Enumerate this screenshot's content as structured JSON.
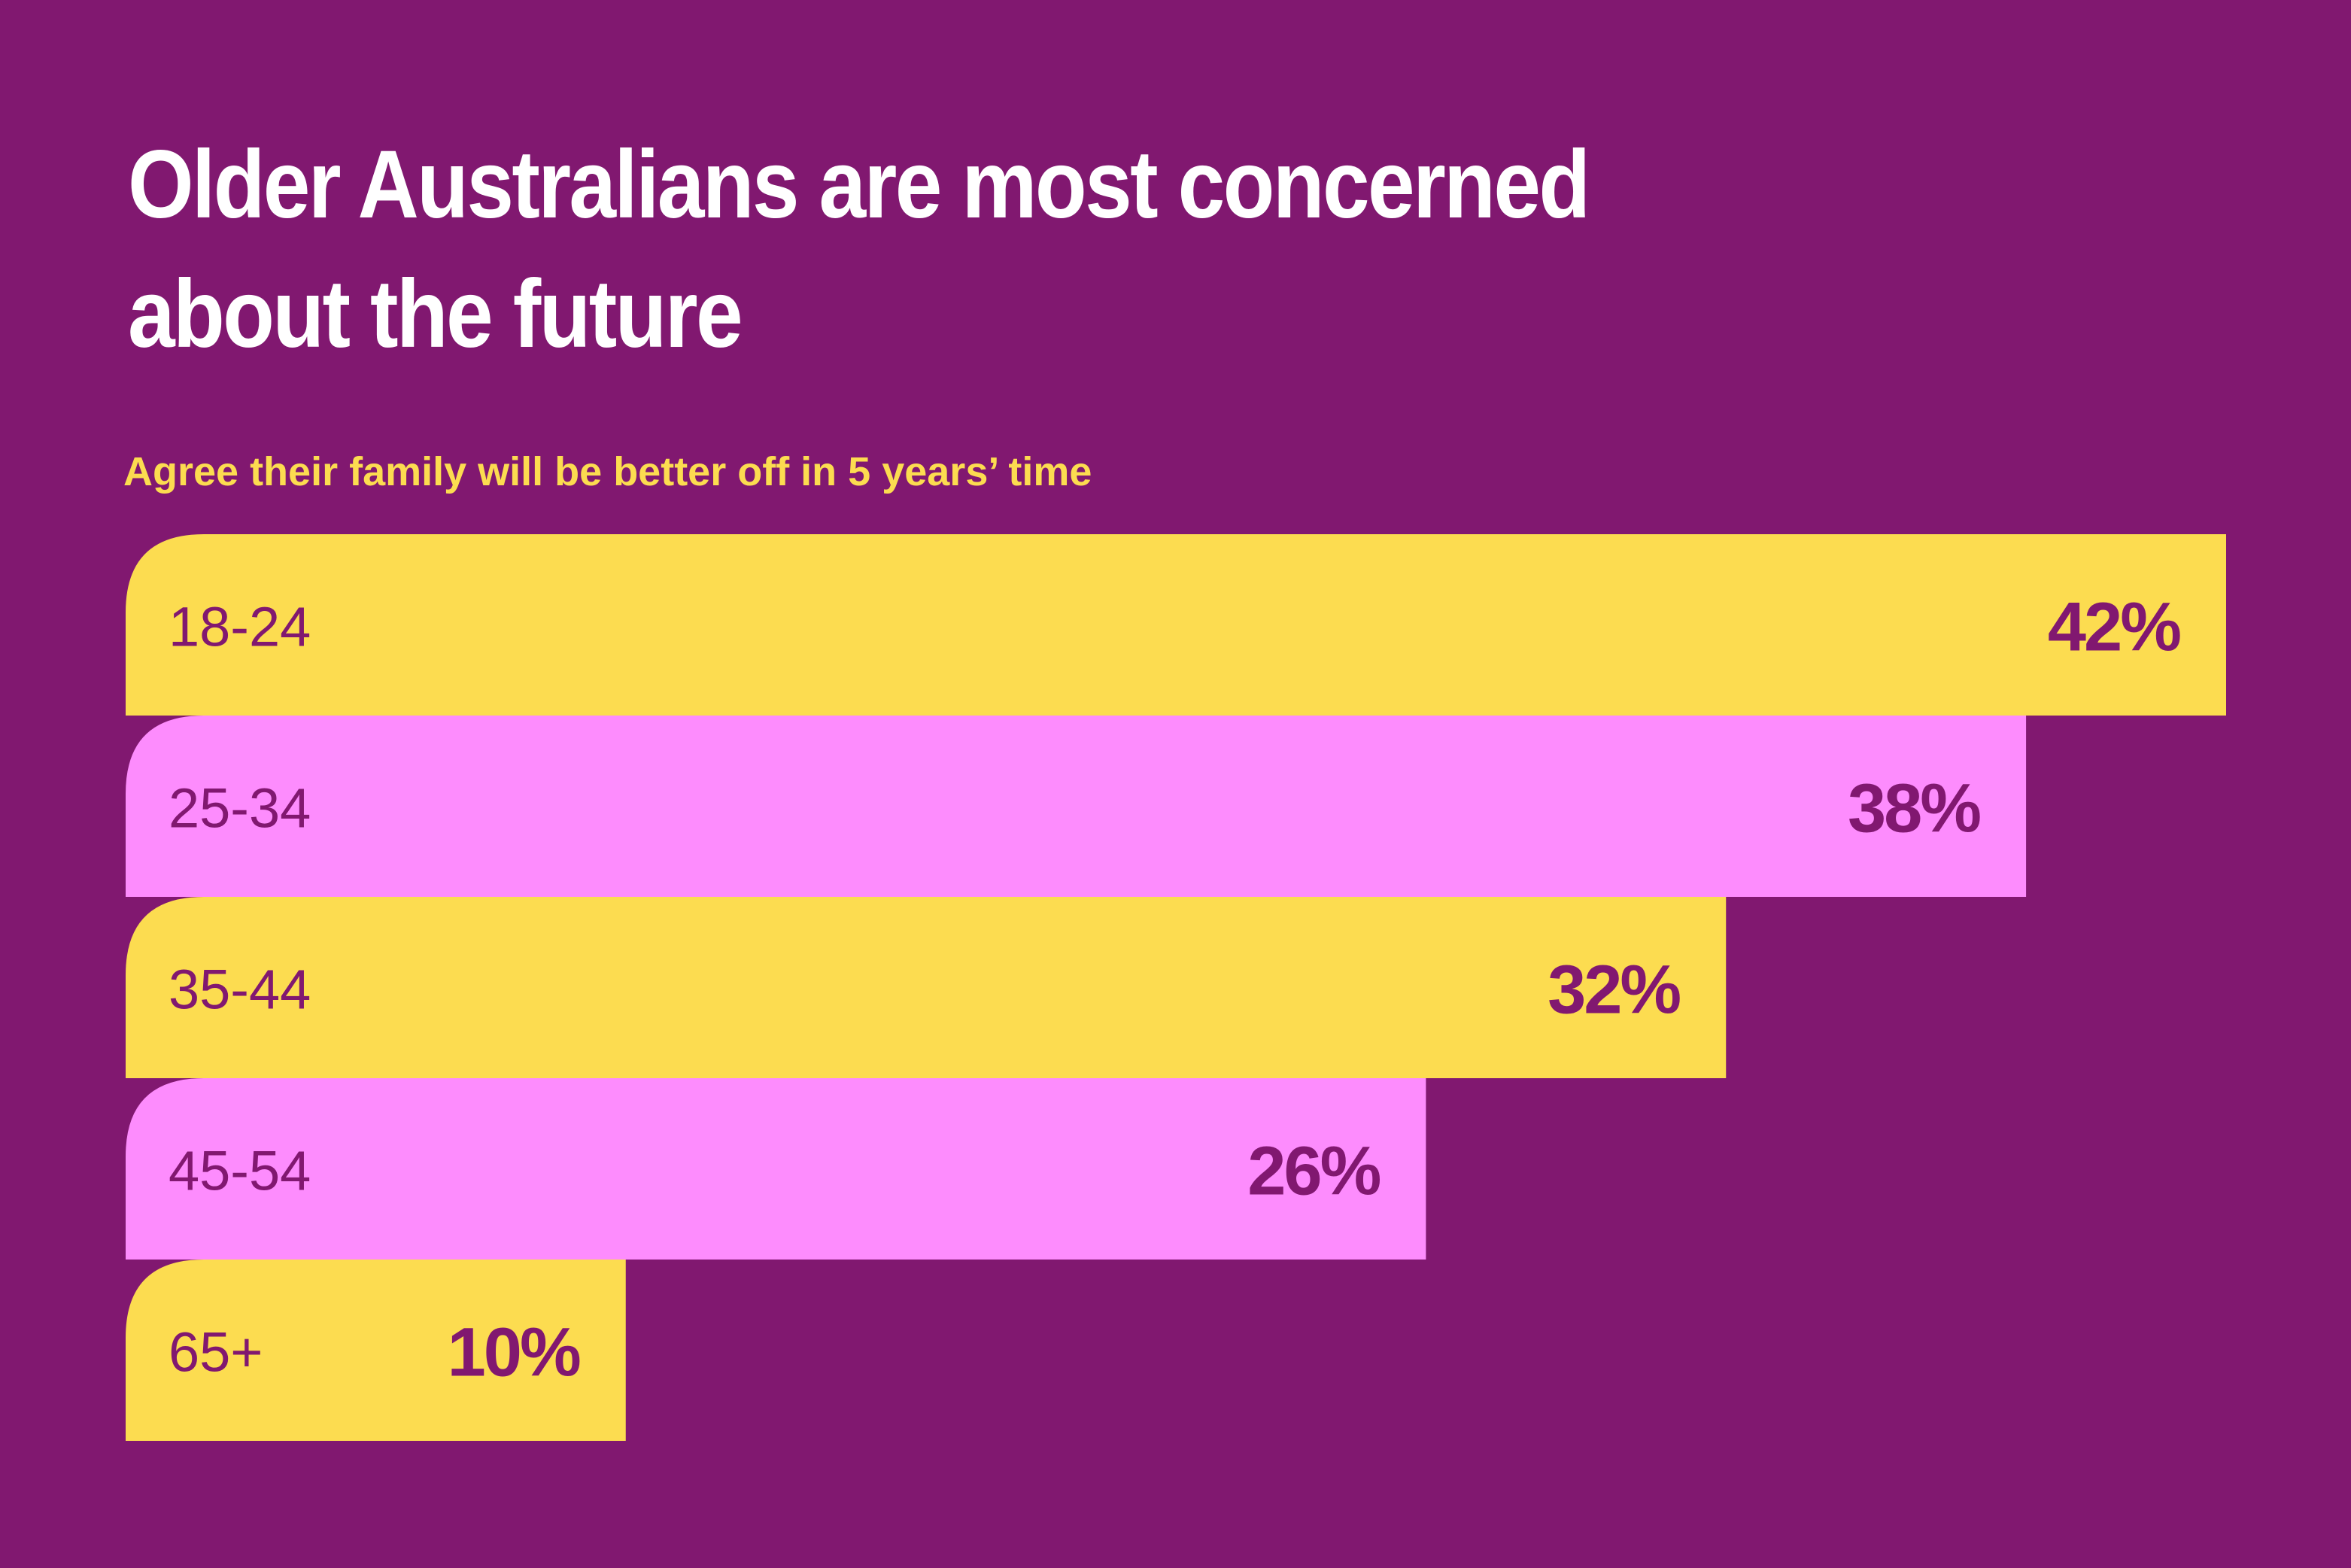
{
  "chart_data": {
    "type": "bar",
    "orientation": "horizontal",
    "title_lines": [
      "Older Australians are most concerned",
      "about the future"
    ],
    "subtitle": "Agree their family will be better off in 5 years’ time",
    "categories": [
      "18-24",
      "25-34",
      "35-44",
      "45-54",
      "65+"
    ],
    "values": [
      42,
      38,
      32,
      26,
      10
    ],
    "value_labels": [
      "42%",
      "38%",
      "32%",
      "26%",
      "10%"
    ],
    "unit": "%",
    "xlim": [
      0,
      42
    ],
    "grid": false,
    "legend": "none"
  },
  "colors": {
    "background": "#811870",
    "bar_yellow": "#fcdc50",
    "bar_pink": "#fd8cfd",
    "text_dark": "#811870",
    "text_white": "#ffffff",
    "subtitle": "#fcdc50"
  }
}
